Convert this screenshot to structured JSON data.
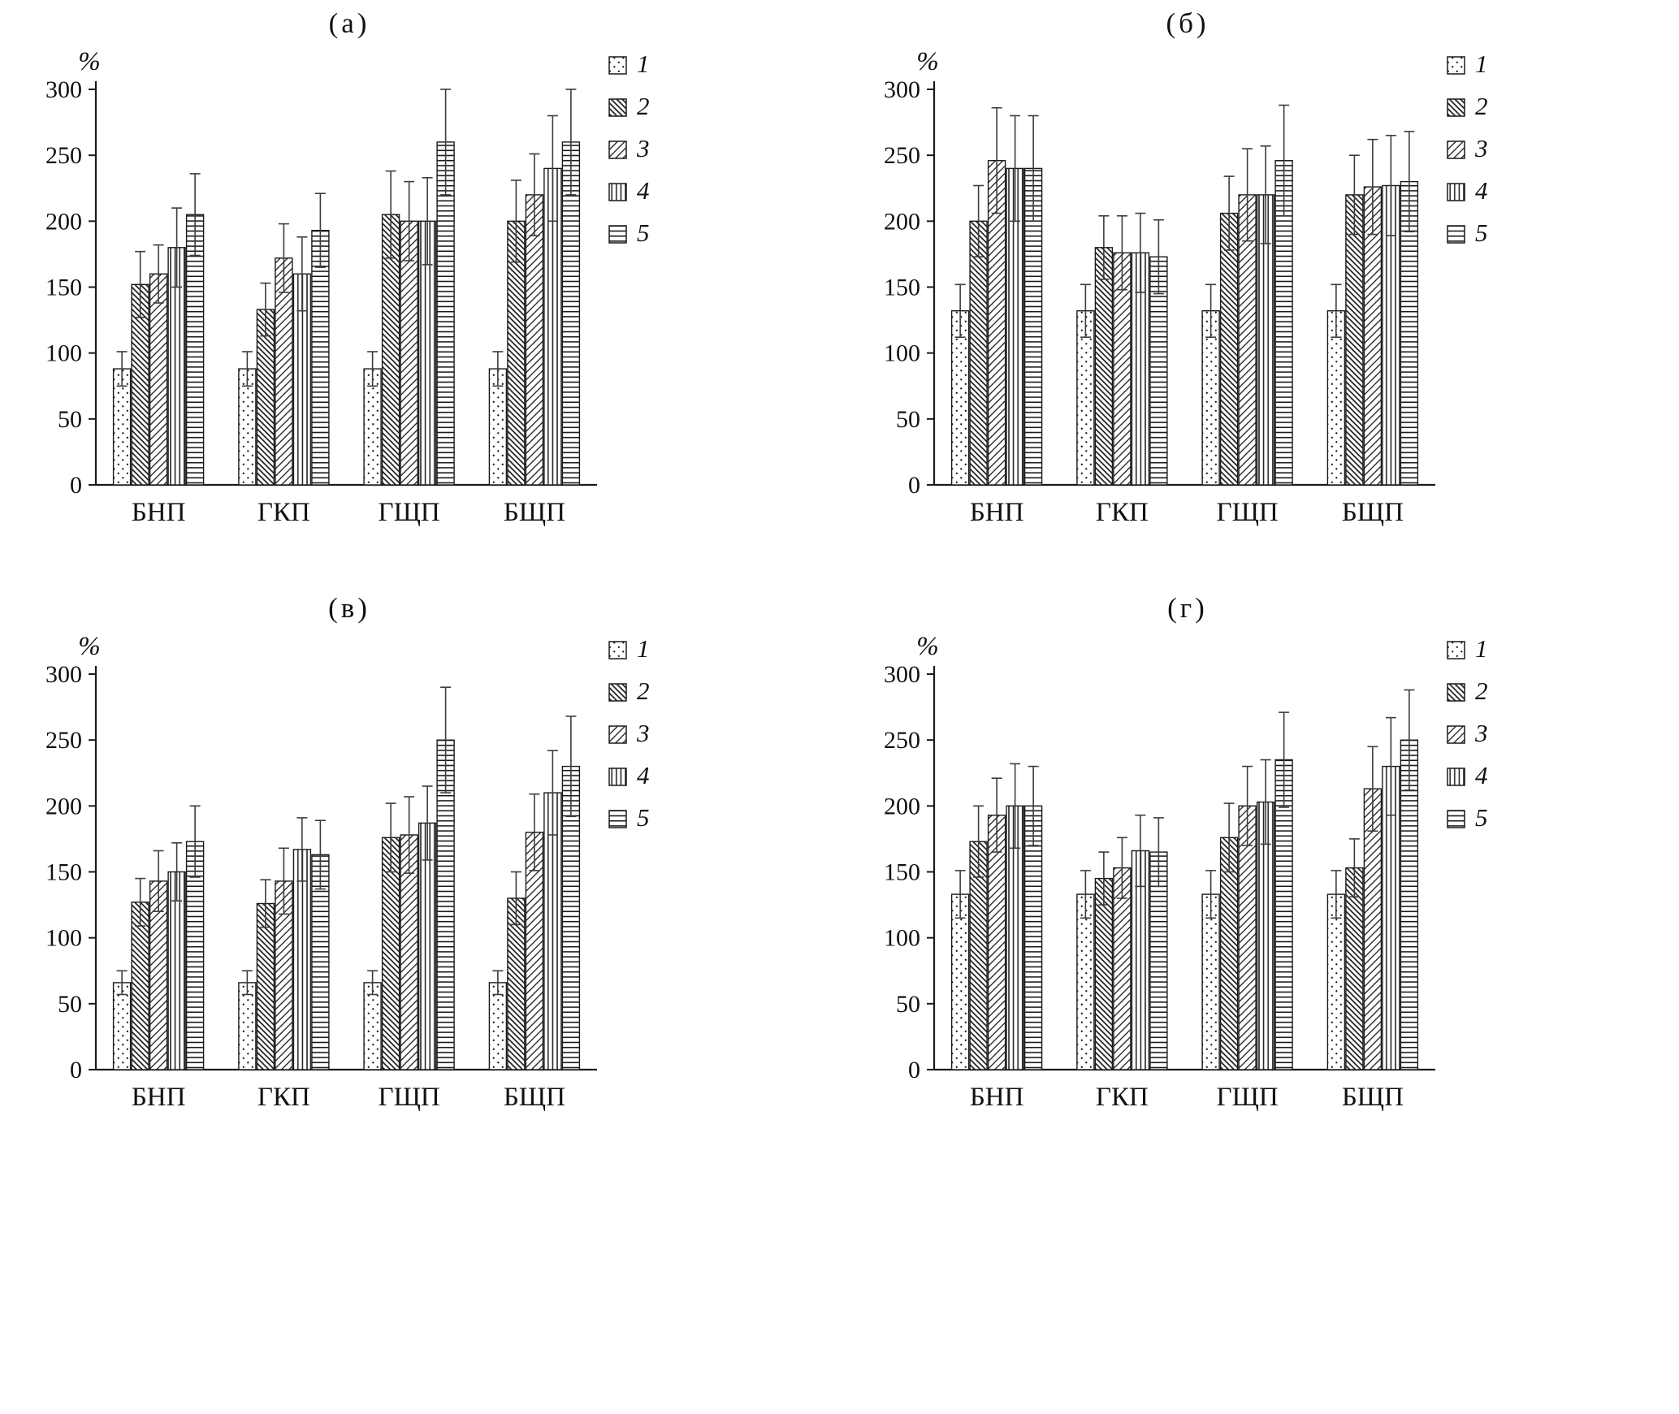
{
  "figure": {
    "legend_labels": [
      "1",
      "2",
      "3",
      "4",
      "5"
    ],
    "legend_patterns": [
      "dots",
      "diagonal-backslash",
      "diagonal-slash",
      "vertical-lines",
      "horizontal-lines"
    ],
    "ink_color": "#1a1a1a",
    "errorbar_color": "#3c3c3c"
  },
  "chart_data": [
    {
      "type": "bar",
      "title": "(а)",
      "ylabel": "%",
      "ylim": [
        0,
        300
      ],
      "yticks": [
        0,
        50,
        100,
        150,
        200,
        250,
        300
      ],
      "categories": [
        "БНП",
        "ГКП",
        "ГЩП",
        "БЩП"
      ],
      "legend_position": "top-right",
      "grid": false,
      "series": [
        {
          "name": "1",
          "pattern": "dots",
          "values": [
            88,
            88,
            88,
            88
          ],
          "errors": [
            13,
            13,
            13,
            13
          ]
        },
        {
          "name": "2",
          "pattern": "diagonal-backslash",
          "values": [
            152,
            133,
            205,
            200
          ],
          "errors": [
            25,
            20,
            33,
            31
          ]
        },
        {
          "name": "3",
          "pattern": "diagonal-slash",
          "values": [
            160,
            172,
            200,
            220
          ],
          "errors": [
            22,
            26,
            30,
            31
          ]
        },
        {
          "name": "4",
          "pattern": "vertical-lines",
          "values": [
            180,
            160,
            200,
            240
          ],
          "errors": [
            30,
            28,
            33,
            40
          ]
        },
        {
          "name": "5",
          "pattern": "horizontal-lines",
          "values": [
            205,
            193,
            260,
            260
          ],
          "errors": [
            31,
            28,
            40,
            40
          ]
        }
      ]
    },
    {
      "type": "bar",
      "title": "(б)",
      "ylabel": "%",
      "ylim": [
        0,
        300
      ],
      "yticks": [
        0,
        50,
        100,
        150,
        200,
        250,
        300
      ],
      "categories": [
        "БНП",
        "ГКП",
        "ГЩП",
        "БЩП"
      ],
      "legend_position": "top-right",
      "grid": false,
      "series": [
        {
          "name": "1",
          "pattern": "dots",
          "values": [
            132,
            132,
            132,
            132
          ],
          "errors": [
            20,
            20,
            20,
            20
          ]
        },
        {
          "name": "2",
          "pattern": "diagonal-backslash",
          "values": [
            200,
            180,
            206,
            220
          ],
          "errors": [
            27,
            24,
            28,
            30
          ]
        },
        {
          "name": "3",
          "pattern": "diagonal-slash",
          "values": [
            246,
            176,
            220,
            226
          ],
          "errors": [
            40,
            28,
            35,
            36
          ]
        },
        {
          "name": "4",
          "pattern": "vertical-lines",
          "values": [
            240,
            176,
            220,
            227
          ],
          "errors": [
            40,
            30,
            37,
            38
          ]
        },
        {
          "name": "5",
          "pattern": "horizontal-lines",
          "values": [
            240,
            173,
            246,
            230
          ],
          "errors": [
            40,
            28,
            42,
            38
          ]
        }
      ]
    },
    {
      "type": "bar",
      "title": "(в)",
      "ylabel": "%",
      "ylim": [
        0,
        300
      ],
      "yticks": [
        0,
        50,
        100,
        150,
        200,
        250,
        300
      ],
      "categories": [
        "БНП",
        "ГКП",
        "ГЩП",
        "БЩП"
      ],
      "legend_position": "top-right",
      "grid": false,
      "series": [
        {
          "name": "1",
          "pattern": "dots",
          "values": [
            66,
            66,
            66,
            66
          ],
          "errors": [
            9,
            9,
            9,
            9
          ]
        },
        {
          "name": "2",
          "pattern": "diagonal-backslash",
          "values": [
            127,
            126,
            176,
            130
          ],
          "errors": [
            18,
            18,
            26,
            20
          ]
        },
        {
          "name": "3",
          "pattern": "diagonal-slash",
          "values": [
            143,
            143,
            178,
            180
          ],
          "errors": [
            23,
            25,
            29,
            29
          ]
        },
        {
          "name": "4",
          "pattern": "vertical-lines",
          "values": [
            150,
            167,
            187,
            210
          ],
          "errors": [
            22,
            24,
            28,
            32
          ]
        },
        {
          "name": "5",
          "pattern": "horizontal-lines",
          "values": [
            173,
            163,
            250,
            230
          ],
          "errors": [
            27,
            26,
            40,
            38
          ]
        }
      ]
    },
    {
      "type": "bar",
      "title": "(г)",
      "ylabel": "%",
      "ylim": [
        0,
        300
      ],
      "yticks": [
        0,
        50,
        100,
        150,
        200,
        250,
        300
      ],
      "categories": [
        "БНП",
        "ГКП",
        "ГЩП",
        "БЩП"
      ],
      "legend_position": "top-right",
      "grid": false,
      "series": [
        {
          "name": "1",
          "pattern": "dots",
          "values": [
            133,
            133,
            133,
            133
          ],
          "errors": [
            18,
            18,
            18,
            18
          ]
        },
        {
          "name": "2",
          "pattern": "diagonal-backslash",
          "values": [
            173,
            145,
            176,
            153
          ],
          "errors": [
            27,
            20,
            26,
            22
          ]
        },
        {
          "name": "3",
          "pattern": "diagonal-slash",
          "values": [
            193,
            153,
            200,
            213
          ],
          "errors": [
            28,
            23,
            30,
            32
          ]
        },
        {
          "name": "4",
          "pattern": "vertical-lines",
          "values": [
            200,
            166,
            203,
            230
          ],
          "errors": [
            32,
            27,
            32,
            37
          ]
        },
        {
          "name": "5",
          "pattern": "horizontal-lines",
          "values": [
            200,
            165,
            235,
            250
          ],
          "errors": [
            30,
            26,
            36,
            38
          ]
        }
      ]
    }
  ]
}
